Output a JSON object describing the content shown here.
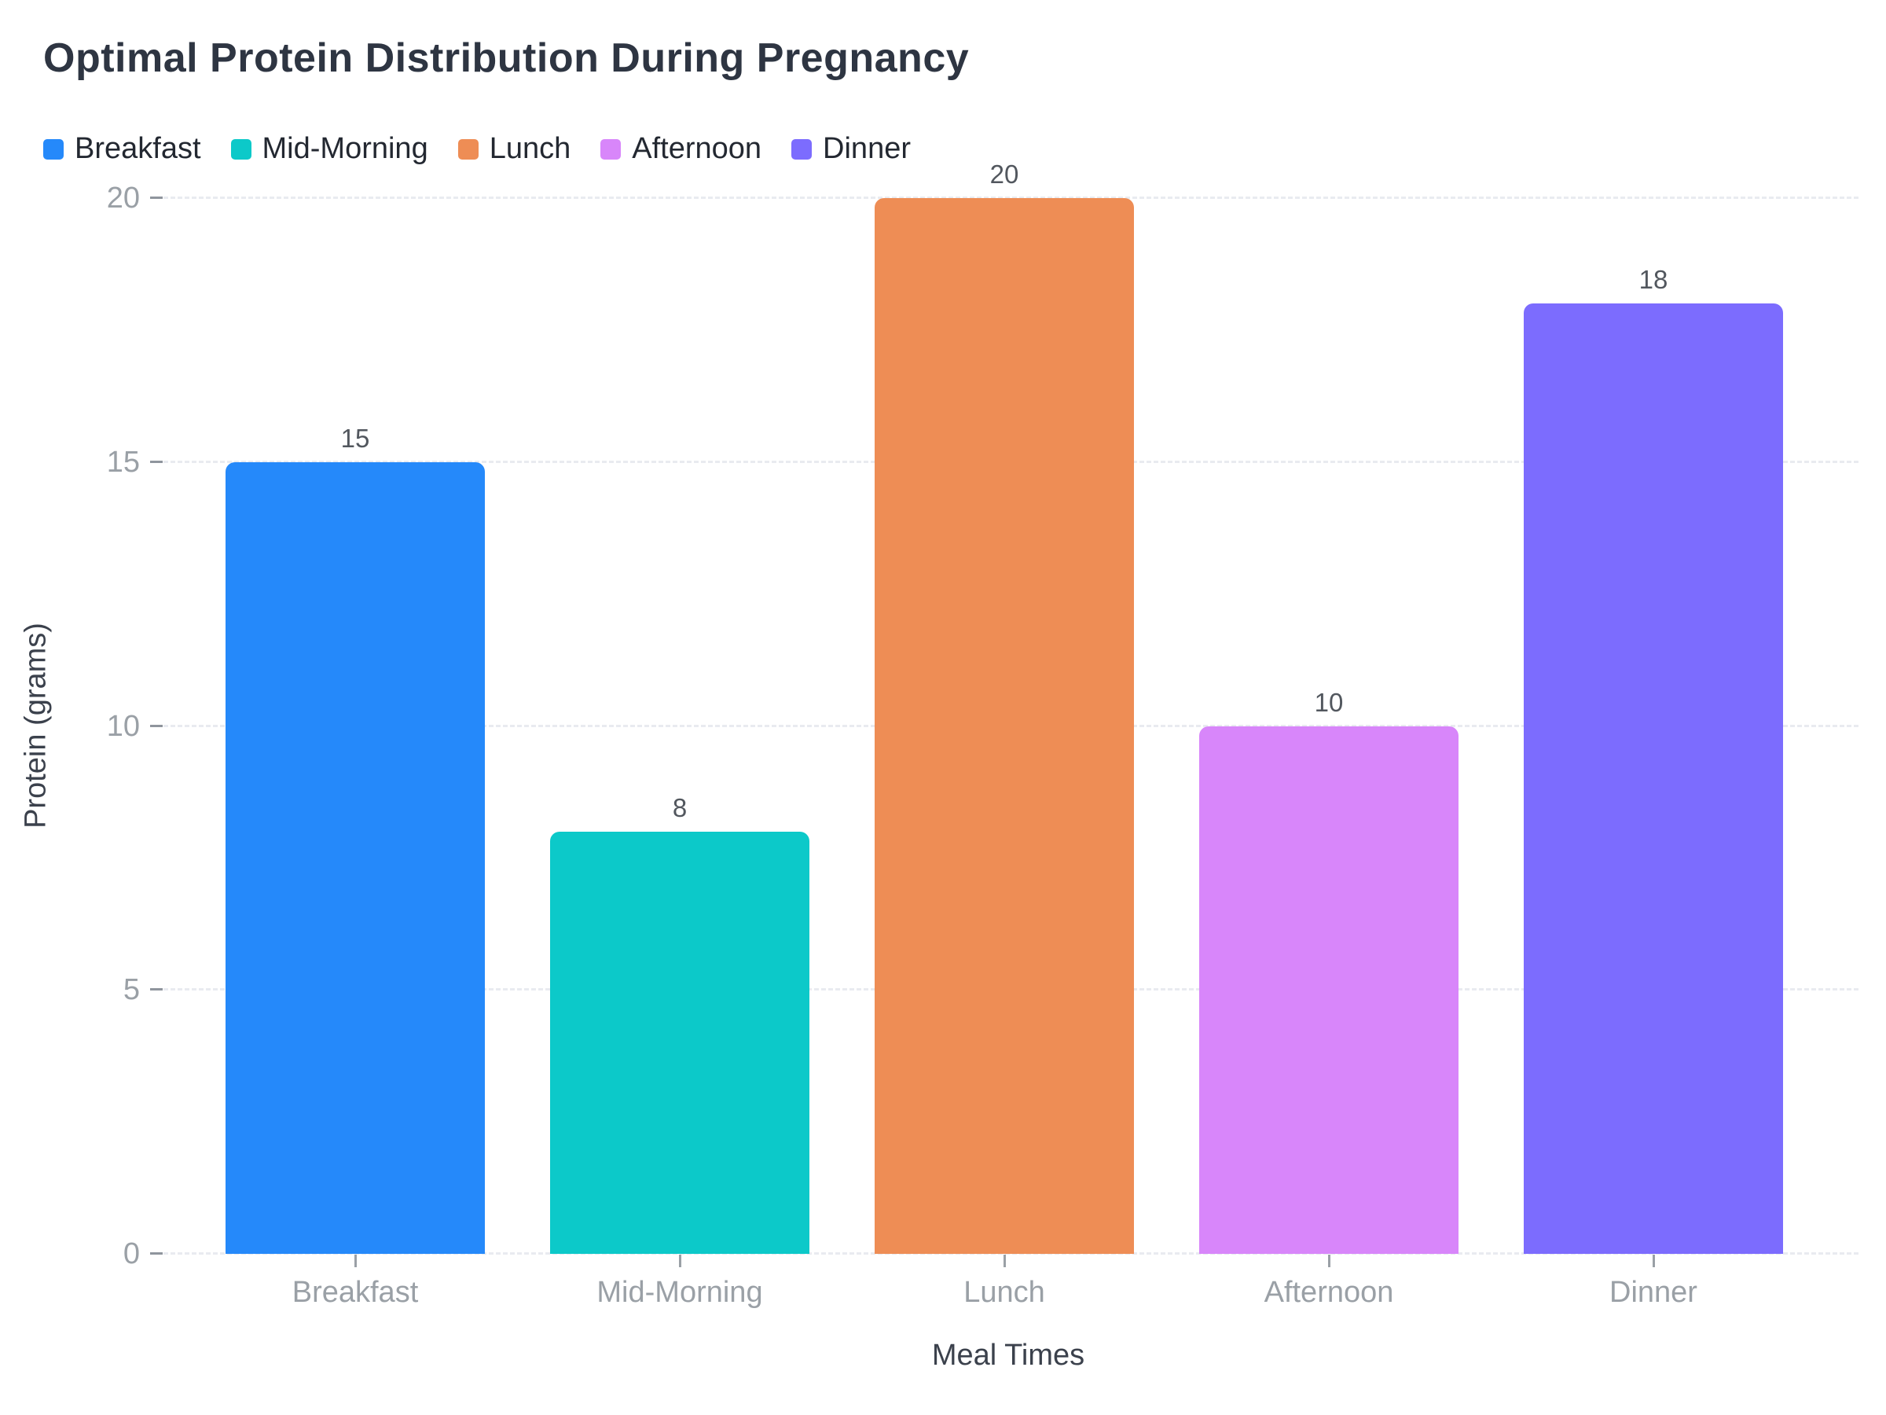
{
  "chart_data": {
    "type": "bar",
    "title": "Optimal Protein Distribution During Pregnancy",
    "categories": [
      "Breakfast",
      "Mid-Morning",
      "Lunch",
      "Afternoon",
      "Dinner"
    ],
    "values": [
      15,
      8,
      20,
      10,
      18
    ],
    "value_labels": [
      "15",
      "8",
      "20",
      "10",
      "18"
    ],
    "bar_colors": [
      "#2589fa",
      "#0cc9c9",
      "#ee8d55",
      "#d886fa",
      "#7c6cfe"
    ],
    "legend": [
      {
        "label": "Breakfast",
        "color": "#2589fa"
      },
      {
        "label": "Mid-Morning",
        "color": "#0cc9c9"
      },
      {
        "label": "Lunch",
        "color": "#ee8d55"
      },
      {
        "label": "Afternoon",
        "color": "#d886fa"
      },
      {
        "label": "Dinner",
        "color": "#7c6cfe"
      }
    ],
    "legend_position": "top-left",
    "xlabel": "Meal Times",
    "ylabel": "Protein (grams)",
    "ylim": [
      0,
      20
    ],
    "yticks": [
      0,
      5,
      10,
      15,
      20
    ],
    "grid": true,
    "gridline_style": "dashed",
    "background_color": "#ffffff",
    "title_color": "#2e3542",
    "axis_label_color": "#9aa0a6",
    "axis_title_color": "#3b414c",
    "value_label_color": "#52575e"
  }
}
